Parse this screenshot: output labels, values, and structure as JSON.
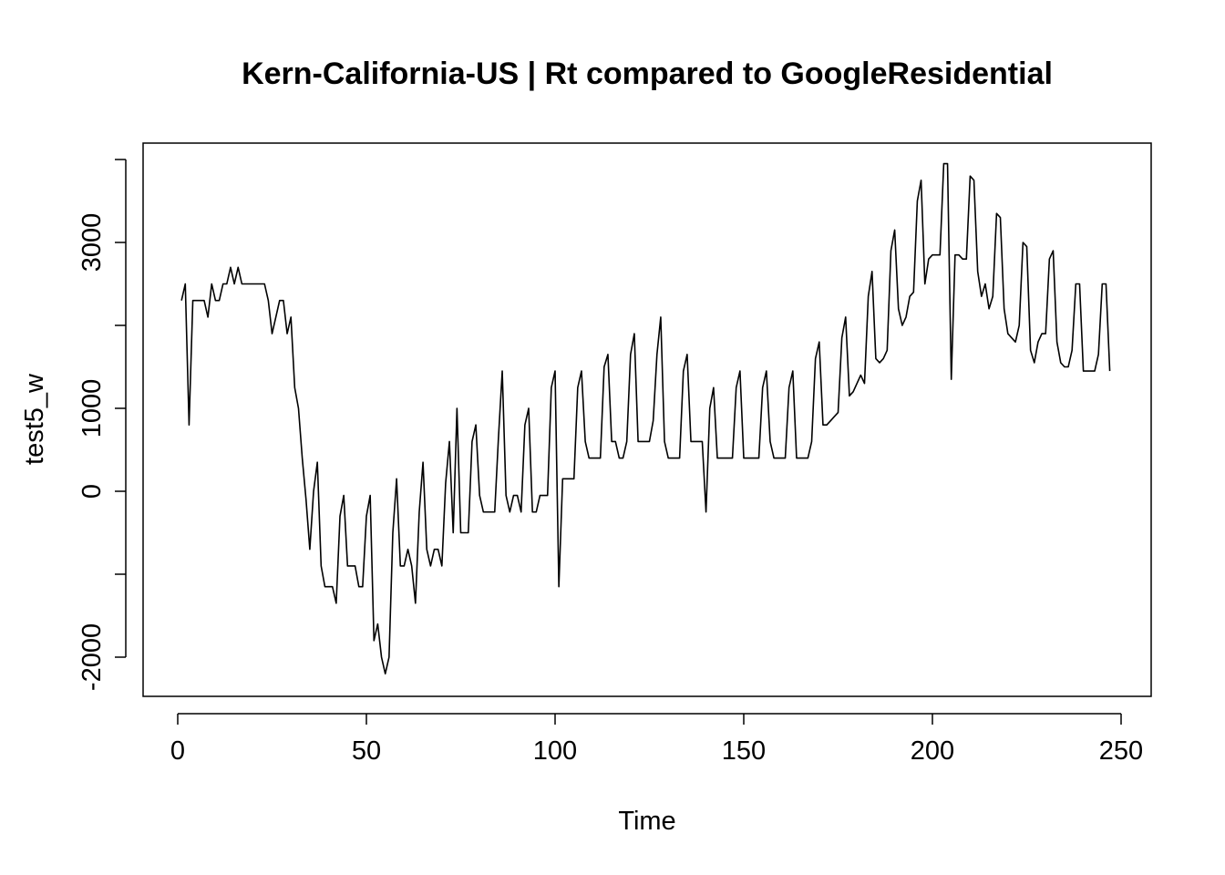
{
  "chart_data": {
    "type": "line",
    "title": "Kern-California-US | Rt compared to GoogleResidential",
    "xlabel": "Time",
    "ylabel": "test5_w",
    "xlim": [
      1,
      248
    ],
    "ylim": [
      -2450,
      4200
    ],
    "x_ticks": [
      0,
      50,
      100,
      150,
      200,
      250
    ],
    "y_ticks": [
      -2000,
      -1000,
      0,
      1000,
      2000,
      3000,
      4000
    ],
    "y_tick_labels": [
      "-2000",
      "",
      "0",
      "1000",
      "",
      "3000",
      ""
    ],
    "grid": false,
    "legend": "none",
    "series": [
      {
        "x_start": 1,
        "values": [
          2300,
          2500,
          800,
          2300,
          2300,
          2300,
          2300,
          2100,
          2500,
          2300,
          2300,
          2500,
          2500,
          2700,
          2500,
          2700,
          2500,
          2500,
          2500,
          2500,
          2500,
          2500,
          2500,
          2300,
          1900,
          2100,
          2300,
          2300,
          1900,
          2100,
          1250,
          1000,
          400,
          -100,
          -700,
          0,
          350,
          -900,
          -1150,
          -1150,
          -1150,
          -1350,
          -300,
          -50,
          -900,
          -900,
          -900,
          -1150,
          -1150,
          -300,
          -50,
          -1800,
          -1600,
          -2000,
          -2200,
          -2000,
          -500,
          150,
          -900,
          -900,
          -700,
          -900,
          -1350,
          -250,
          350,
          -700,
          -900,
          -700,
          -700,
          -900,
          100,
          600,
          -500,
          1000,
          -500,
          -500,
          -500,
          600,
          800,
          -50,
          -250,
          -250,
          -250,
          -250,
          650,
          1450,
          -50,
          -250,
          -50,
          -50,
          -250,
          800,
          1000,
          -250,
          -250,
          -50,
          -50,
          -50,
          1250,
          1450,
          -1150,
          150,
          150,
          150,
          150,
          1250,
          1450,
          600,
          400,
          400,
          400,
          400,
          1500,
          1650,
          600,
          600,
          400,
          400,
          600,
          1650,
          1900,
          600,
          600,
          600,
          600,
          850,
          1650,
          2100,
          600,
          400,
          400,
          400,
          400,
          1450,
          1650,
          600,
          600,
          600,
          600,
          -250,
          1000,
          1250,
          400,
          400,
          400,
          400,
          400,
          1250,
          1450,
          400,
          400,
          400,
          400,
          400,
          1250,
          1450,
          600,
          400,
          400,
          400,
          400,
          1250,
          1450,
          400,
          400,
          400,
          400,
          600,
          1600,
          1800,
          800,
          800,
          850,
          900,
          950,
          1850,
          2100,
          1150,
          1200,
          1300,
          1400,
          1300,
          2350,
          2650,
          1600,
          1550,
          1600,
          1700,
          2900,
          3150,
          2200,
          2000,
          2100,
          2350,
          2400,
          3500,
          3750,
          2500,
          2800,
          2850,
          2850,
          2850,
          3950,
          3950,
          1350,
          2850,
          2850,
          2800,
          2800,
          3800,
          3750,
          2650,
          2350,
          2500,
          2200,
          2350,
          3350,
          3300,
          2200,
          1900,
          1850,
          1800,
          2000,
          3000,
          2950,
          1700,
          1550,
          1800,
          1900,
          1900,
          2800,
          2900,
          1800,
          1550,
          1500,
          1500,
          1700,
          2500,
          2500,
          1450,
          1450,
          1450,
          1450,
          1650,
          2500,
          2500,
          1450
        ]
      }
    ]
  }
}
